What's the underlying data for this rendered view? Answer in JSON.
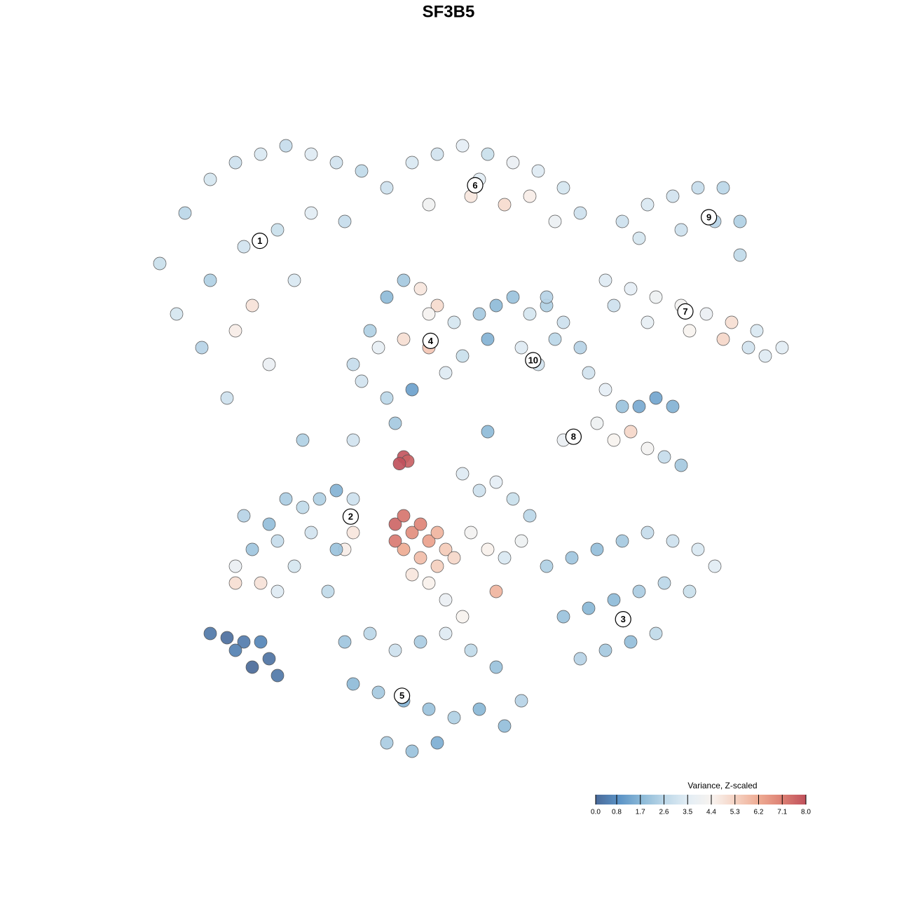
{
  "chart_data": {
    "type": "scatter",
    "title": "SF3B5",
    "xlim": [
      -40,
      40
    ],
    "ylim": [
      -40,
      40
    ],
    "x": [
      -36,
      -33,
      -30,
      -27,
      -24,
      -21,
      -18,
      -15,
      -12,
      -9,
      -34,
      -30,
      -26,
      -22,
      -18,
      -14,
      -31,
      -27,
      -23,
      -28,
      -25,
      -20,
      -6,
      -3,
      0,
      3,
      6,
      9,
      12,
      14,
      -4,
      1,
      5,
      8,
      11,
      2,
      19,
      22,
      25,
      28,
      31,
      33,
      21,
      26,
      30,
      33,
      17,
      20,
      23,
      26,
      29,
      32,
      35,
      38,
      22,
      27,
      31,
      34,
      18,
      36,
      -13,
      -11,
      -9,
      -7,
      -5,
      -3,
      -1,
      0,
      -12,
      -10,
      -7,
      -4,
      -2,
      -9,
      -6,
      -4,
      2,
      4,
      6,
      8,
      10,
      12,
      3,
      7,
      9,
      11,
      14,
      15,
      17,
      19,
      21,
      23,
      25,
      18,
      20,
      22,
      24,
      26,
      16,
      12,
      -27,
      -25,
      -23,
      -21,
      -19,
      -17,
      -15,
      -13,
      -26,
      -22,
      -18,
      -14,
      -27,
      -24,
      -20,
      -16,
      -13,
      -22,
      0,
      2,
      4,
      6,
      8,
      1,
      3,
      5,
      7,
      -2,
      0,
      4,
      10,
      13,
      16,
      19,
      22,
      25,
      28,
      30,
      12,
      15,
      18,
      21,
      24,
      27,
      14,
      17,
      20,
      23,
      -14,
      -11,
      -8,
      -5,
      -2,
      1,
      4,
      7,
      -13,
      -10,
      -7,
      -4,
      -1,
      2,
      5,
      -9,
      -6,
      -3,
      -30,
      -28,
      -26,
      -24,
      -23,
      -25,
      -27,
      -22,
      -19,
      -13,
      -15,
      3,
      10,
      -8,
      -8,
      -7,
      -6,
      -5,
      -4,
      -3,
      -2,
      -1,
      -7,
      -5,
      -3,
      -6,
      -4,
      -8,
      -7,
      -6.5,
      -7.5
    ],
    "y": [
      22,
      28,
      32,
      34,
      35,
      36,
      35,
      34,
      33,
      31,
      16,
      20,
      24,
      26,
      28,
      27,
      12,
      14,
      10,
      6,
      17,
      20,
      34,
      35,
      36,
      35,
      34,
      33,
      31,
      28,
      29,
      30,
      29,
      30,
      27,
      32,
      27,
      29,
      30,
      31,
      31,
      27,
      25,
      26,
      27,
      23,
      20,
      19,
      18,
      17,
      16,
      15,
      14,
      12,
      15,
      14,
      13,
      12,
      17,
      11,
      10,
      14,
      18,
      20,
      19,
      17,
      15,
      11,
      8,
      12,
      13,
      12,
      9,
      6,
      7,
      16,
      16,
      17,
      18,
      16,
      17,
      15,
      13,
      12,
      10,
      13,
      12,
      9,
      7,
      5,
      5,
      6,
      5,
      1,
      2,
      0,
      -1,
      -2,
      3,
      1,
      -14,
      -12,
      -9,
      -6,
      -7,
      -6,
      -5,
      -6,
      -8,
      -11,
      -10,
      -12,
      -16,
      -16,
      -14,
      -17,
      -10,
      -17,
      -3,
      -5,
      -4,
      -6,
      -8,
      -10,
      -12,
      -13,
      -11,
      -18,
      -20,
      -17,
      -14,
      -13,
      -12,
      -11,
      -10,
      -11,
      -12,
      -14,
      -20,
      -19,
      -18,
      -17,
      -16,
      -17,
      -25,
      -24,
      -23,
      -22,
      -23,
      -22,
      -24,
      -23,
      -22,
      -24,
      -26,
      -30,
      -28,
      -29,
      -30,
      -31,
      -32,
      -31,
      -33,
      -35,
      -36,
      -35,
      -22,
      -22.5,
      -23,
      -23,
      -25,
      -26,
      -24,
      -27,
      1,
      1,
      -12,
      2,
      18,
      3,
      -9,
      -8,
      -10,
      -9,
      -11,
      -10,
      -12,
      -13,
      -12,
      -13,
      -14,
      -15,
      -16,
      -11,
      -1,
      -1.5,
      -1.8
    ],
    "values": [
      2.9,
      2.6,
      3.2,
      3.0,
      3.3,
      2.8,
      3.4,
      3.1,
      2.7,
      3.0,
      3.2,
      2.4,
      3.1,
      2.9,
      3.5,
      2.8,
      2.5,
      4.6,
      3.8,
      3.0,
      4.9,
      3.3,
      3.3,
      3.1,
      3.6,
      2.9,
      3.8,
      3.4,
      3.2,
      3.0,
      4.1,
      4.8,
      5.1,
      4.6,
      3.9,
      3.5,
      3.0,
      3.3,
      3.1,
      2.8,
      2.6,
      2.4,
      3.2,
      3.0,
      2.5,
      2.7,
      3.4,
      3.6,
      4.0,
      4.2,
      3.8,
      5.0,
      3.3,
      3.5,
      3.7,
      4.4,
      5.2,
      3.1,
      3.0,
      3.4,
      2.8,
      2.4,
      1.8,
      2.2,
      4.8,
      5.1,
      3.2,
      2.9,
      3.1,
      3.7,
      5.0,
      5.6,
      3.4,
      2.6,
      1.2,
      4.3,
      2.2,
      1.8,
      2.0,
      3.2,
      2.4,
      3.0,
      1.6,
      3.4,
      3.1,
      2.6,
      2.5,
      3.1,
      3.6,
      2.0,
      1.4,
      1.3,
      1.6,
      4.4,
      5.2,
      4.2,
      2.8,
      2.2,
      4.0,
      3.8,
      3.8,
      2.1,
      1.9,
      2.3,
      2.7,
      2.4,
      1.6,
      3.0,
      2.5,
      2.8,
      3.1,
      4.6,
      5.0,
      4.9,
      3.2,
      2.7,
      4.8,
      3.4,
      3.4,
      3.0,
      3.6,
      2.9,
      2.6,
      4.2,
      4.5,
      3.3,
      4.0,
      3.8,
      4.4,
      6.0,
      2.4,
      2.1,
      1.9,
      2.2,
      2.8,
      3.0,
      3.3,
      3.5,
      2.0,
      1.7,
      1.8,
      2.3,
      2.6,
      2.9,
      2.5,
      2.2,
      1.9,
      2.7,
      2.1,
      2.6,
      3.0,
      2.3,
      3.4,
      2.7,
      2.0,
      2.5,
      1.8,
      2.2,
      1.6,
      2.0,
      2.4,
      1.7,
      1.9,
      2.3,
      2.0,
      1.5,
      0.3,
      0.1,
      0.4,
      0.6,
      0.2,
      0.0,
      0.5,
      0.3,
      2.4,
      3.1,
      2.0,
      1.8,
      2.5,
      2.2,
      7.6,
      7.3,
      6.8,
      7.0,
      6.4,
      6.0,
      5.5,
      5.2,
      6.2,
      5.8,
      5.4,
      4.8,
      4.5,
      7.2,
      7.9,
      7.7,
      8.0
    ],
    "annotations": [
      {
        "label": "1",
        "x": -24.1,
        "y": 24.7
      },
      {
        "label": "6",
        "x": 1.5,
        "y": 31.3
      },
      {
        "label": "9",
        "x": 29.3,
        "y": 27.5
      },
      {
        "label": "7",
        "x": 26.5,
        "y": 16.3
      },
      {
        "label": "4",
        "x": -3.8,
        "y": 12.8
      },
      {
        "label": "10",
        "x": 8.4,
        "y": 10.5
      },
      {
        "label": "8",
        "x": 13.2,
        "y": 1.4
      },
      {
        "label": "2",
        "x": -13.3,
        "y": -8.1
      },
      {
        "label": "3",
        "x": 19.1,
        "y": -20.3
      },
      {
        "label": "5",
        "x": -7.2,
        "y": -29.4
      }
    ],
    "colorbar": {
      "title": "Variance, Z-scaled",
      "clim": [
        0,
        8
      ],
      "colorscale": [
        "#4a6a99",
        "#5b93c6",
        "#8dbad8",
        "#bfd9e9",
        "#e4eef5",
        "#f8f3ef",
        "#f5d2c2",
        "#eeaa92",
        "#dc7f73",
        "#c0515c"
      ],
      "ticks": [
        {
          "value": 0,
          "label": "0.0"
        },
        0.8,
        1.7,
        2.6,
        3.5,
        4.4,
        5.3,
        6.2,
        7.1,
        {
          "value": 8,
          "label": "8.0"
        }
      ]
    }
  }
}
